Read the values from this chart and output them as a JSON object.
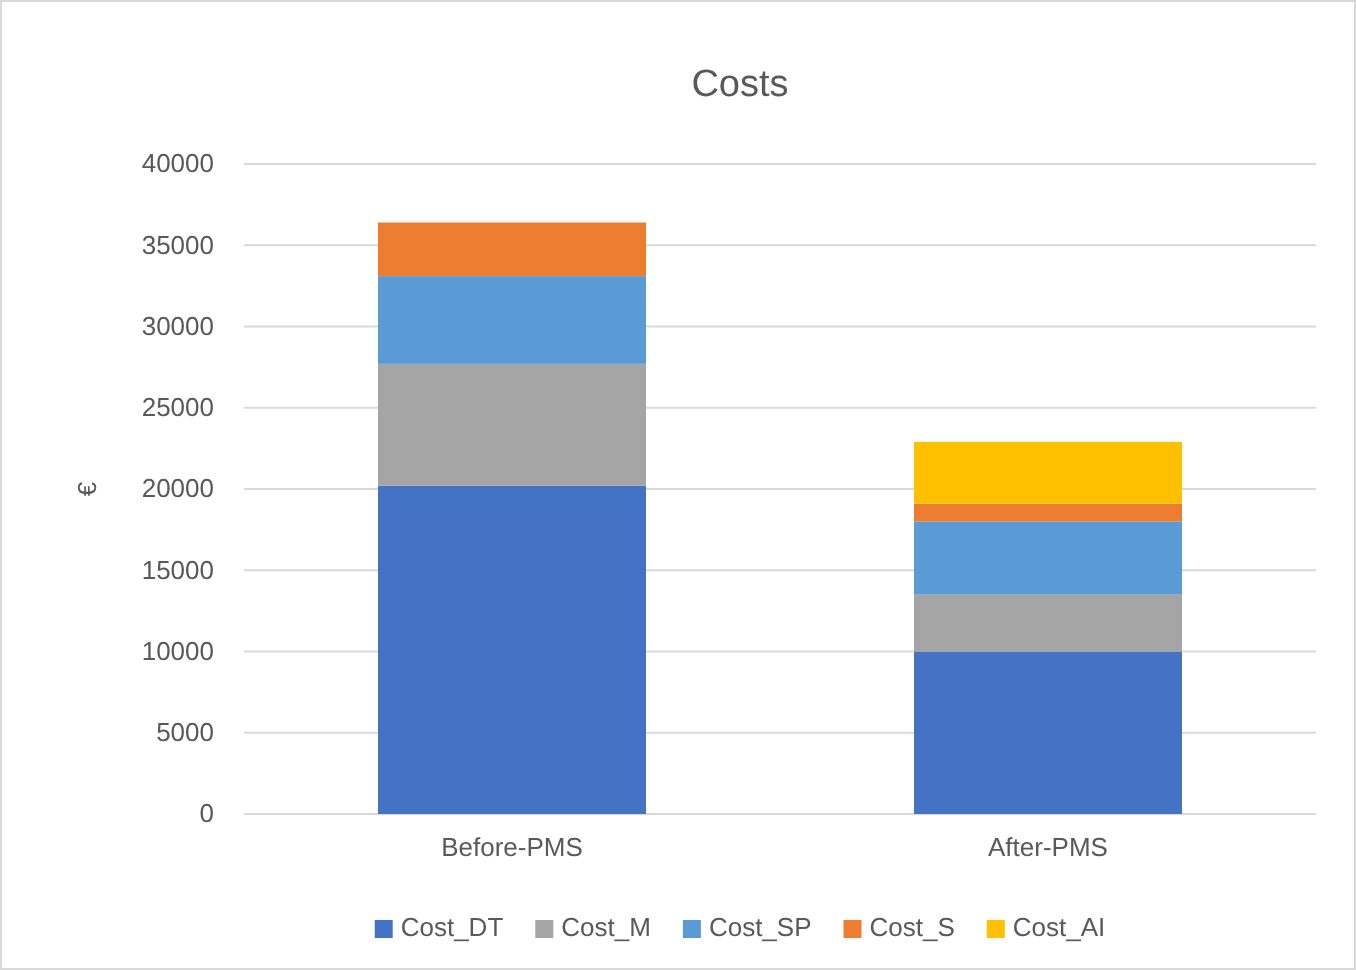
{
  "chart_data": {
    "type": "bar",
    "title": "Costs",
    "ylabel": "€",
    "stacked": true,
    "categories": [
      "Before-PMS",
      "After-PMS"
    ],
    "series": [
      {
        "name": "Cost_DT",
        "color": "#4472c4",
        "values": [
          20200,
          10000
        ]
      },
      {
        "name": "Cost_M",
        "color": "#a5a5a5",
        "values": [
          7500,
          3500
        ]
      },
      {
        "name": "Cost_SP",
        "color": "#5b9bd5",
        "values": [
          5400,
          4500
        ]
      },
      {
        "name": "Cost_S",
        "color": "#ed7d31",
        "values": [
          3300,
          1100
        ]
      },
      {
        "name": "Cost_AI",
        "color": "#ffc000",
        "values": [
          0,
          3800
        ]
      }
    ],
    "ylim": [
      0,
      40000
    ],
    "yticks": [
      0,
      5000,
      10000,
      15000,
      20000,
      25000,
      30000,
      35000,
      40000
    ],
    "grid": "y",
    "legend": "bottom"
  }
}
